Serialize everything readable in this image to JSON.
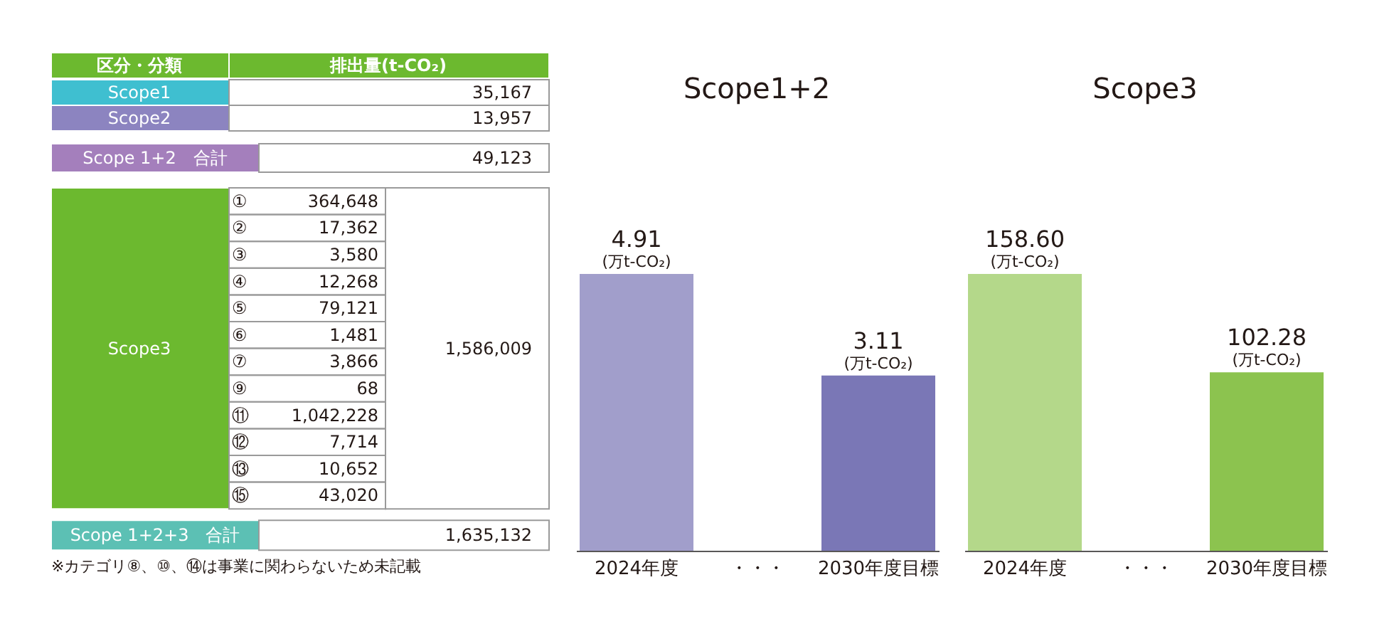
{
  "chart_data": [
    {
      "type": "other",
      "xlabel": "区分・分類",
      "ylabel": "排出量(t-CO₂)",
      "color": "#6cb92f",
      "categories": [
        "Scope1",
        "Scope2",
        "Scope 1+2　合計",
        "①",
        "②",
        "③",
        "④",
        "⑤",
        "⑥",
        "⑦",
        "⑨",
        "⑪",
        "⑫",
        "⑬",
        "⑮",
        "Scope 1+2+3　合計"
      ],
      "values": [
        35167,
        13957,
        49123,
        364648,
        17362,
        3580,
        12268,
        79121,
        1481,
        3866,
        68,
        1042228,
        7714,
        10652,
        43020,
        1635132
      ],
      "value_labels": [
        "35,167",
        "13,957",
        "49,123",
        "364,648",
        "17,362",
        "3,580",
        "12,268",
        "79,121",
        "1,481",
        "3,866",
        "68",
        "1,042,228",
        "7,714",
        "10,652",
        "43,020",
        "1,635,132"
      ],
      "colors": [
        "#3fbfd0",
        "#8c84c0",
        "#a47fbc",
        null,
        null,
        null,
        null,
        null,
        null,
        null,
        null,
        null,
        null,
        null,
        null,
        "#5cc0b4"
      ],
      "annotations": [
        "Scope3",
        "1,586,009",
        "※カテゴリ⑧、⑩、⑭は事業に関わらないため未記載"
      ]
    },
    {
      "type": "bar",
      "title": "Scope1+2",
      "categories": [
        "2024年度",
        "・・・",
        "2030年度目標"
      ],
      "values": [
        4.91,
        null,
        3.11
      ],
      "colors": [
        "#a19ecb",
        "#ffffff",
        "#7a77b6"
      ],
      "data_labels": true,
      "tick_labels": "x",
      "annotations": [
        {
          "text": "(万t-CO₂)",
          "x": "2024年度",
          "y": 4.91
        },
        {
          "text": "(万t-CO₂)",
          "x": "2030年度目標",
          "y": 3.11
        }
      ]
    },
    {
      "type": "bar",
      "title": "Scope3",
      "categories": [
        "2024年度",
        "・・・",
        "2030年度目標"
      ],
      "values": [
        158.6,
        null,
        102.28
      ],
      "value_labels": [
        "158.60",
        null,
        "102.28"
      ],
      "colors": [
        "#b4d88a",
        "#ffffff",
        "#8cc34f"
      ],
      "tick_labels": "x",
      "annotations": [
        {
          "text": "(万t-CO₂)",
          "x": "2024年度",
          "y": 158.6
        },
        {
          "text": "(万t-CO₂)",
          "x": "2030年度目標",
          "y": 102.28
        }
      ]
    }
  ]
}
